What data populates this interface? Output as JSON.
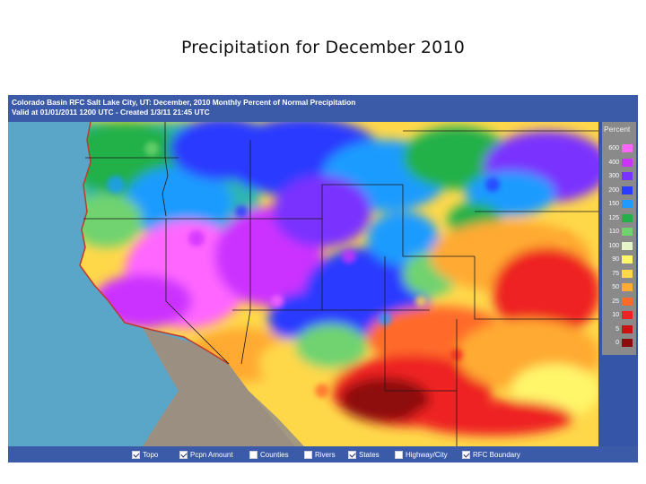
{
  "slide": {
    "title": "Precipitation for December 2010"
  },
  "map": {
    "header_line1": "Colorado Basin RFC Salt Lake City, UT: December, 2010 Monthly Percent of Normal Precipitation",
    "header_line2": "Valid at 01/01/2011 1200 UTC - Created 1/3/11 21:45 UTC",
    "colors": {
      "frame": "#3b5ba9",
      "ocean": "#5aa6c9",
      "land_outside": "#9a8f80",
      "boundary": "#1a1a1a"
    }
  },
  "legend": {
    "title": "Percent",
    "items": [
      {
        "label": "600",
        "color": "#ff66ff"
      },
      {
        "label": "400",
        "color": "#cc33ff"
      },
      {
        "label": "300",
        "color": "#7a33ff"
      },
      {
        "label": "200",
        "color": "#2b3bff"
      },
      {
        "label": "150",
        "color": "#1f9bff"
      },
      {
        "label": "125",
        "color": "#23b04a"
      },
      {
        "label": "110",
        "color": "#6fd36f"
      },
      {
        "label": "100",
        "color": "#e6f5c8"
      },
      {
        "label": "90",
        "color": "#fff66a"
      },
      {
        "label": "75",
        "color": "#ffd84a"
      },
      {
        "label": "50",
        "color": "#ffaa33"
      },
      {
        "label": "25",
        "color": "#ff6a2a"
      },
      {
        "label": "10",
        "color": "#ee2222"
      },
      {
        "label": "5",
        "color": "#cc1111"
      },
      {
        "label": "0",
        "color": "#8e0b0b"
      }
    ]
  },
  "toolbar": {
    "items": [
      {
        "label": "Topo",
        "checked": true
      },
      {
        "label": "Pcpn Amount",
        "checked": true
      },
      {
        "label": "Counties",
        "checked": false
      },
      {
        "label": "Rivers",
        "checked": false
      },
      {
        "label": "States",
        "checked": true
      },
      {
        "label": "Highway/City",
        "checked": false
      },
      {
        "label": "RFC Boundary",
        "checked": true
      }
    ]
  }
}
